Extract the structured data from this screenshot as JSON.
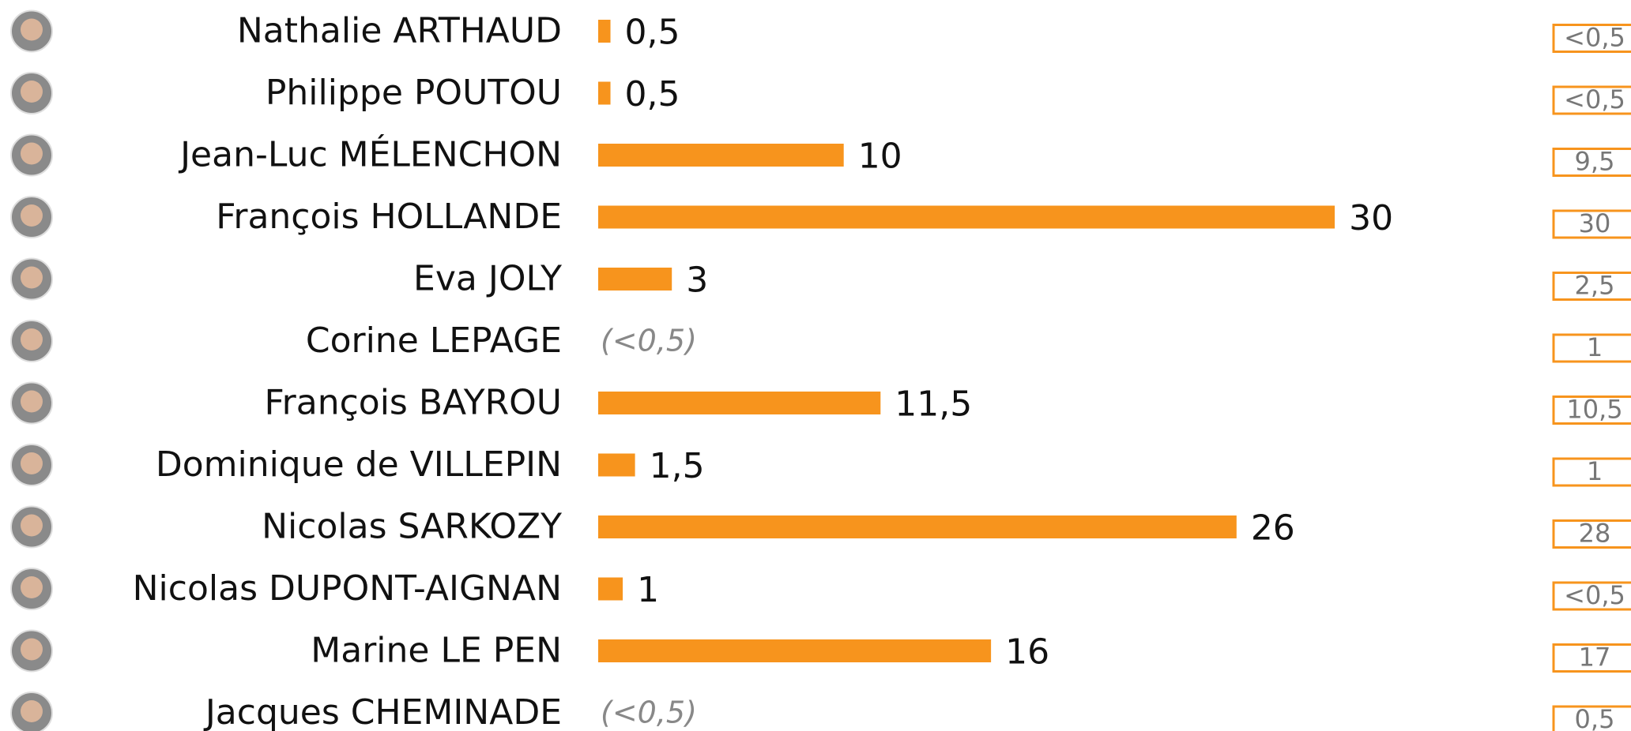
{
  "chart_data": {
    "type": "bar",
    "orientation": "horizontal",
    "color": "#f7941d",
    "categories": [
      "Nathalie ARTHAUD",
      "Philippe POUTOU",
      "Jean-Luc MÉLENCHON",
      "François HOLLANDE",
      "Eva JOLY",
      "Corine LEPAGE",
      "François BAYROU",
      "Dominique de VILLEPIN",
      "Nicolas SARKOZY",
      "Nicolas DUPONT-AIGNAN",
      "Marine LE PEN",
      "Jacques CHEMINADE"
    ],
    "values": [
      0.5,
      0.5,
      10,
      30,
      3,
      null,
      11.5,
      1.5,
      26,
      1,
      16,
      null
    ],
    "value_labels": [
      "0,5",
      "0,5",
      "10",
      "30",
      "3",
      "(<0,5)",
      "11,5",
      "1,5",
      "26",
      "1",
      "16",
      "(<0,5)"
    ],
    "comparison": {
      "color": "#f7941d",
      "values": [
        null,
        null,
        9.5,
        30,
        2.5,
        1,
        10.5,
        1,
        28,
        null,
        17,
        0.5
      ],
      "value_labels": [
        "<0,5",
        "<0,5",
        "9,5",
        "30",
        "2,5",
        "1",
        "10,5",
        "1",
        "28",
        "<0,5",
        "17",
        "0,5"
      ]
    }
  }
}
